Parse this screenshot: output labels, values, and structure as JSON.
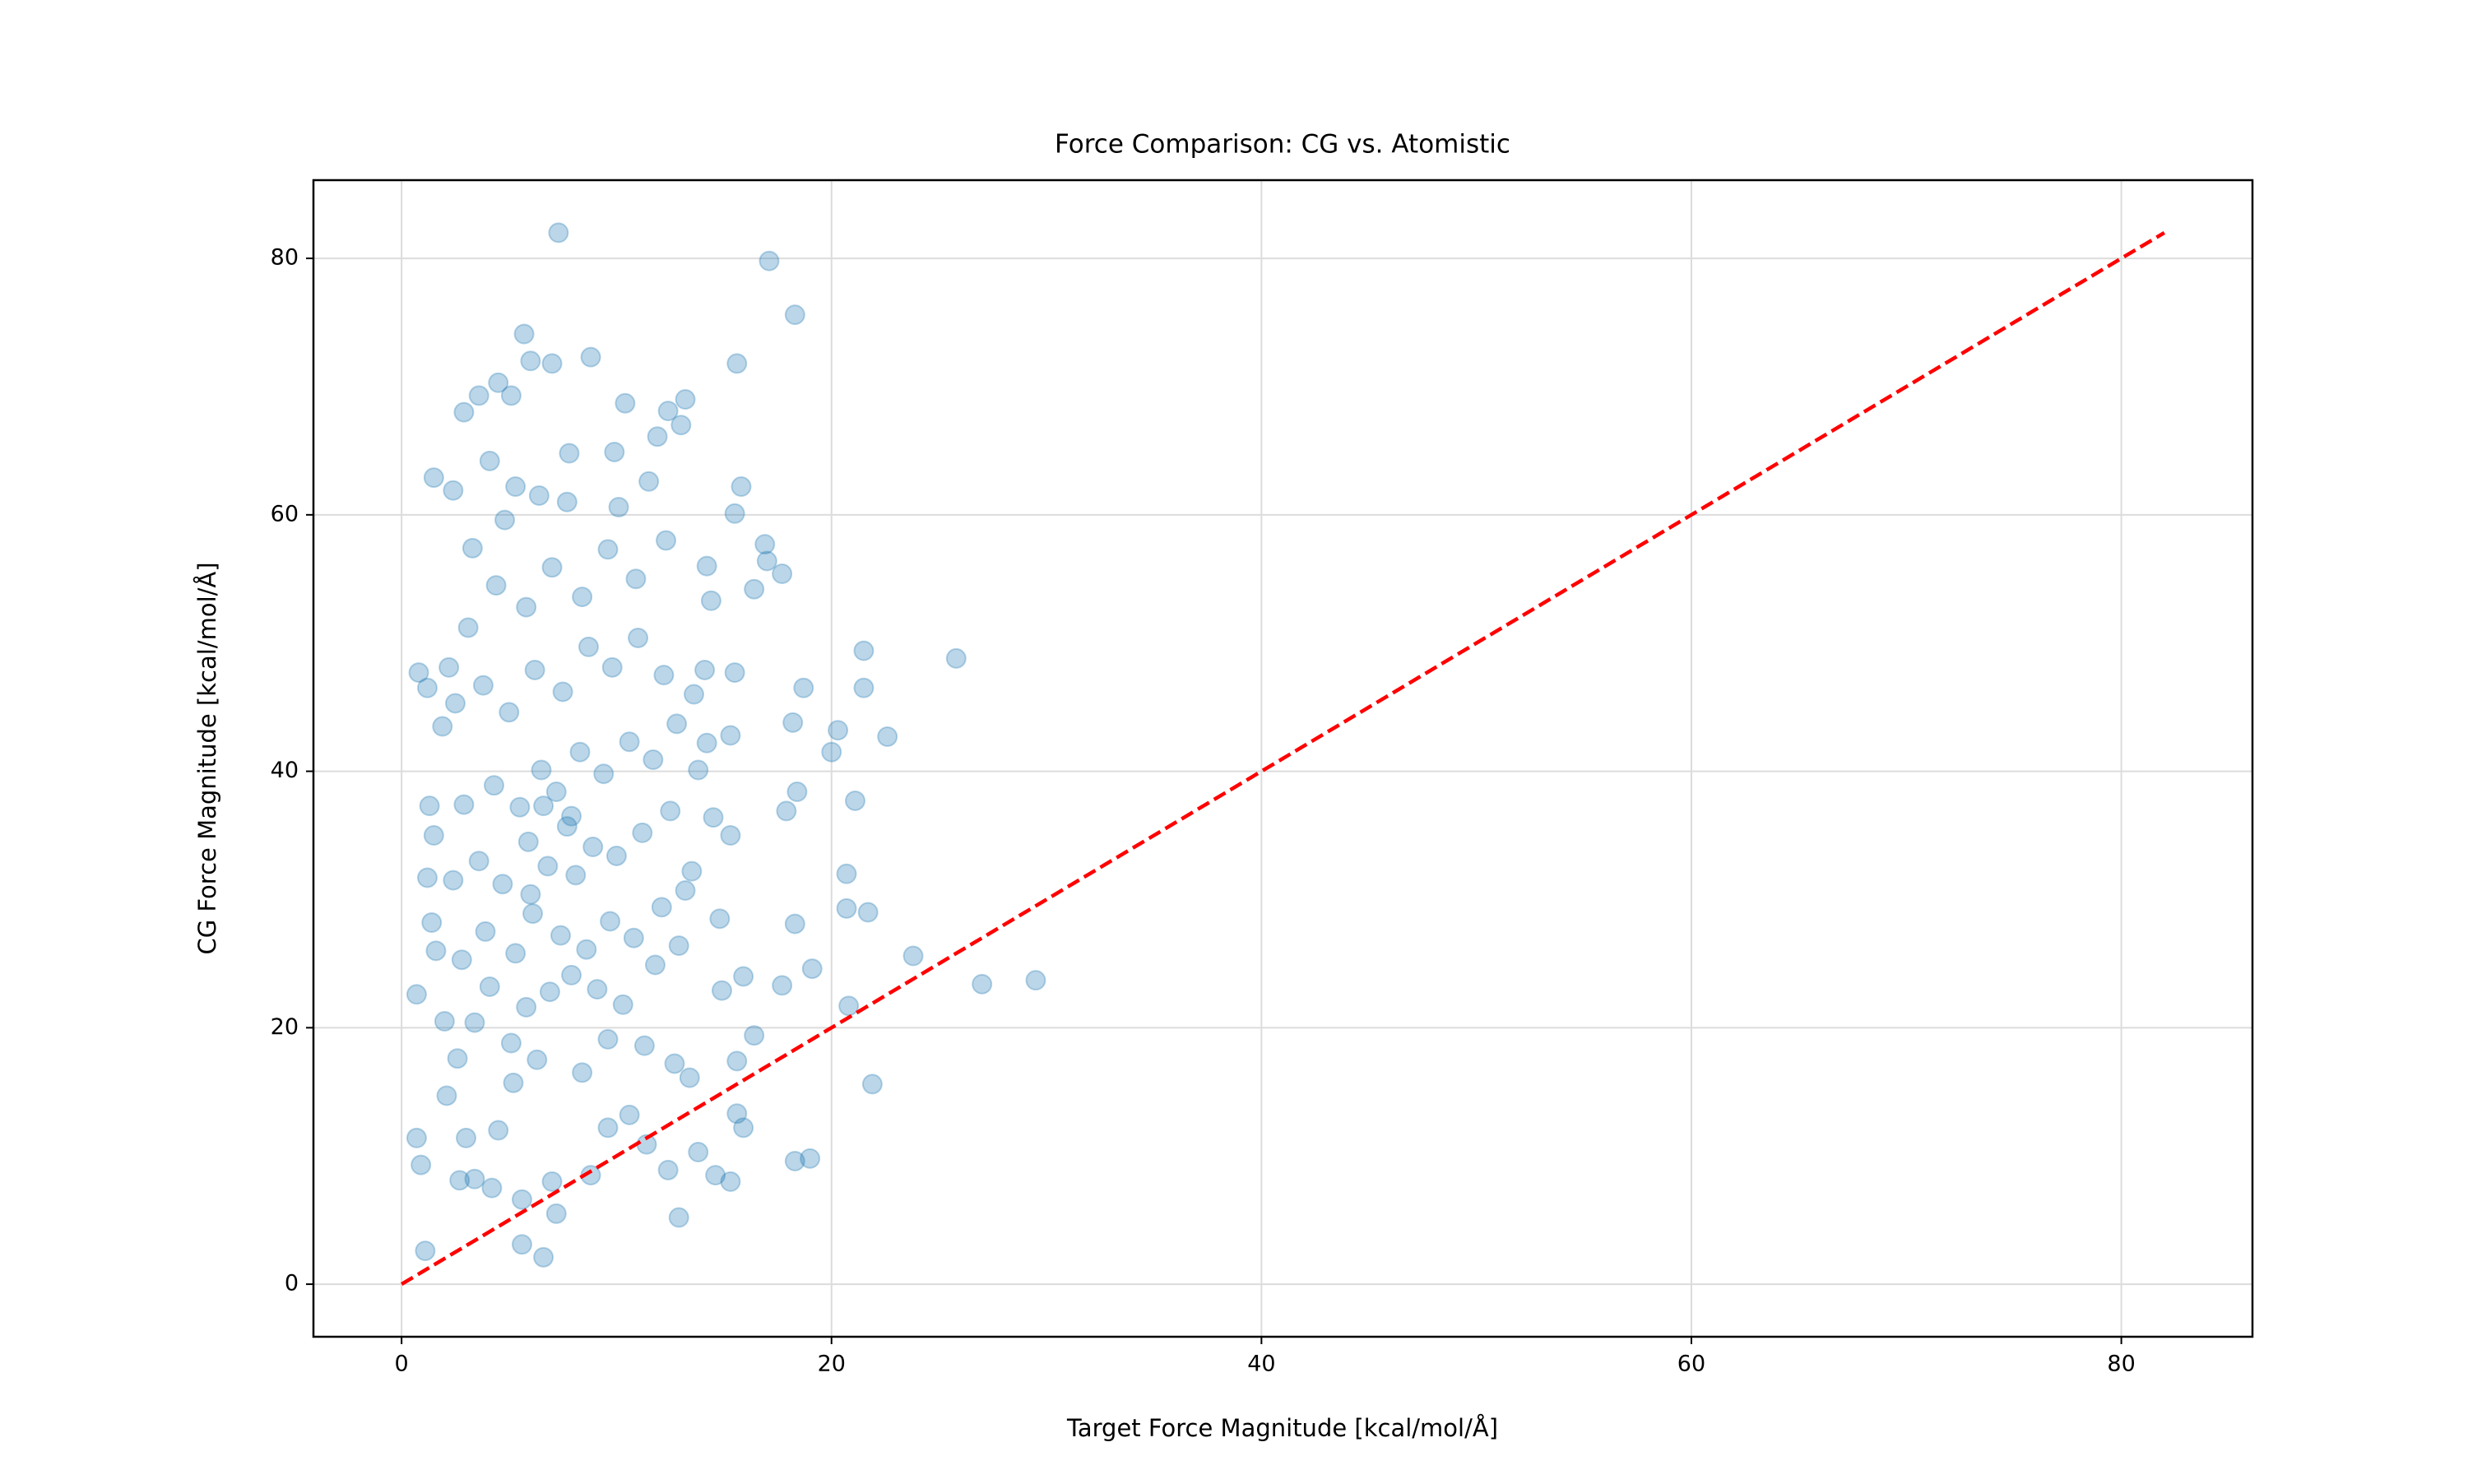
{
  "chart_data": {
    "type": "scatter",
    "title": "Force Comparison: CG vs. Atomistic",
    "x_label": "Target Force Magnitude [kcal/mol/Å]",
    "y_label": "CG Force Magnitude [kcal/mol/Å]",
    "xlim": [
      -4.1,
      86.1
    ],
    "ylim": [
      -4.1,
      86.1
    ],
    "xticks": [
      0,
      20,
      40,
      60,
      80
    ],
    "yticks": [
      0,
      20,
      40,
      60,
      80
    ],
    "grid": true,
    "series": [
      {
        "type": "scatter",
        "color": "#1f77b4",
        "x": [
          7.3,
          17.1,
          18.3,
          5.7,
          8.8,
          15.6,
          7.0,
          6.0,
          4.5,
          3.6,
          5.1,
          13.2,
          10.4,
          2.9,
          12.4,
          13.0,
          11.9,
          7.8,
          9.9,
          1.5,
          29.5,
          27.0,
          25.8,
          23.8,
          22.6,
          21.9,
          21.7,
          21.5,
          21.5,
          21.1,
          20.7,
          20.7,
          20.8,
          20.3,
          20.0,
          19.1,
          19.0,
          18.3,
          18.7,
          18.2,
          18.4,
          17.9,
          18.3,
          17.7,
          16.9,
          17.0,
          17.7,
          16.4,
          15.8,
          15.5,
          14.2,
          14.4,
          14.1,
          15.5,
          13.6,
          14.2,
          15.3,
          13.8,
          14.5,
          15.3,
          13.5,
          14.8,
          15.9,
          14.9,
          15.6,
          16.4,
          15.6,
          15.9,
          14.6,
          15.3,
          13.8,
          12.9,
          12.4,
          6.6,
          5.6,
          1.1,
          0.7,
          0.9,
          0.7,
          0.8,
          1.2,
          2.2,
          1.9,
          1.3,
          1.5,
          1.2,
          1.4,
          1.6,
          2.0,
          2.1,
          2.7,
          3.4,
          4.2,
          5.6,
          7.2,
          7.0,
          8.8,
          9.6,
          10.6,
          11.4,
          3.0,
          4.5,
          5.2,
          6.3,
          8.4,
          9.6,
          11.3,
          12.7,
          13.4,
          2.6,
          3.4,
          4.1,
          5.8,
          6.9,
          7.9,
          9.1,
          10.3,
          11.8,
          12.9,
          2.8,
          3.9,
          5.3,
          6.1,
          7.4,
          8.6,
          9.7,
          10.8,
          12.1,
          13.2,
          2.4,
          3.6,
          4.7,
          5.9,
          6.8,
          7.7,
          8.9,
          10.0,
          11.2,
          12.5,
          2.9,
          4.3,
          5.5,
          6.5,
          7.2,
          8.3,
          9.4,
          10.6,
          11.7,
          12.8,
          2.5,
          3.8,
          5.0,
          6.2,
          7.5,
          8.7,
          9.8,
          11.0,
          12.2,
          3.1,
          4.4,
          5.8,
          7.0,
          8.4,
          9.6,
          10.9,
          12.3,
          3.3,
          4.8,
          6.4,
          7.7,
          10.1,
          11.5,
          2.4,
          5.3,
          4.1,
          6.6,
          7.9,
          6.0,
          8.1,
          5.1
        ],
        "values": [
          82,
          79.8,
          75.6,
          74.1,
          72.3,
          71.8,
          71.8,
          72,
          70.3,
          69.3,
          69.3,
          69,
          68.7,
          68,
          68.1,
          67,
          66.1,
          64.8,
          64.9,
          62.9,
          23.7,
          23.4,
          48.8,
          25.6,
          42.7,
          15.6,
          29,
          49.4,
          46.5,
          37.7,
          32,
          29.3,
          21.7,
          43.2,
          41.5,
          24.6,
          9.8,
          9.6,
          46.5,
          43.8,
          38.4,
          36.9,
          28.1,
          23.3,
          57.7,
          56.4,
          55.4,
          54.2,
          62.2,
          60.1,
          56,
          53.3,
          47.9,
          47.7,
          46,
          42.2,
          42.8,
          40.1,
          36.4,
          35,
          32.2,
          28.5,
          24,
          22.9,
          17.4,
          19.4,
          13.3,
          12.2,
          8.5,
          8,
          10.3,
          5.2,
          8.9,
          2.1,
          3.1,
          2.6,
          11.4,
          9.3,
          22.6,
          47.7,
          46.5,
          48.1,
          43.5,
          37.3,
          35,
          31.7,
          28.2,
          26,
          20.5,
          14.7,
          8.1,
          8.2,
          7.5,
          6.6,
          5.5,
          8,
          8.5,
          12.2,
          13.2,
          10.9,
          11.4,
          12,
          15.7,
          17.5,
          16.5,
          19.1,
          18.6,
          17.2,
          16.1,
          17.6,
          20.4,
          23.2,
          21.6,
          22.8,
          24.1,
          23,
          21.8,
          24.9,
          26.4,
          25.3,
          27.5,
          25.8,
          28.9,
          27.2,
          26.1,
          28.3,
          27,
          29.4,
          30.7,
          31.5,
          33,
          31.2,
          34.5,
          32.6,
          35.7,
          34.1,
          33.4,
          35.2,
          36.9,
          37.4,
          38.9,
          37.2,
          40.1,
          38.4,
          41.5,
          39.8,
          42.3,
          40.9,
          43.7,
          45.3,
          46.7,
          44.6,
          47.9,
          46.2,
          49.7,
          48.1,
          50.4,
          47.5,
          51.2,
          54.5,
          52.8,
          55.9,
          53.6,
          57.3,
          55,
          58,
          57.4,
          59.6,
          61.5,
          61,
          60.6,
          62.6,
          61.9,
          62.2,
          64.2,
          37.3,
          36.5,
          30.4,
          31.9,
          18.8
        ]
      },
      {
        "type": "line",
        "color": "#ff0000",
        "x": [
          0,
          82
        ],
        "values": [
          0,
          82
        ]
      }
    ]
  }
}
